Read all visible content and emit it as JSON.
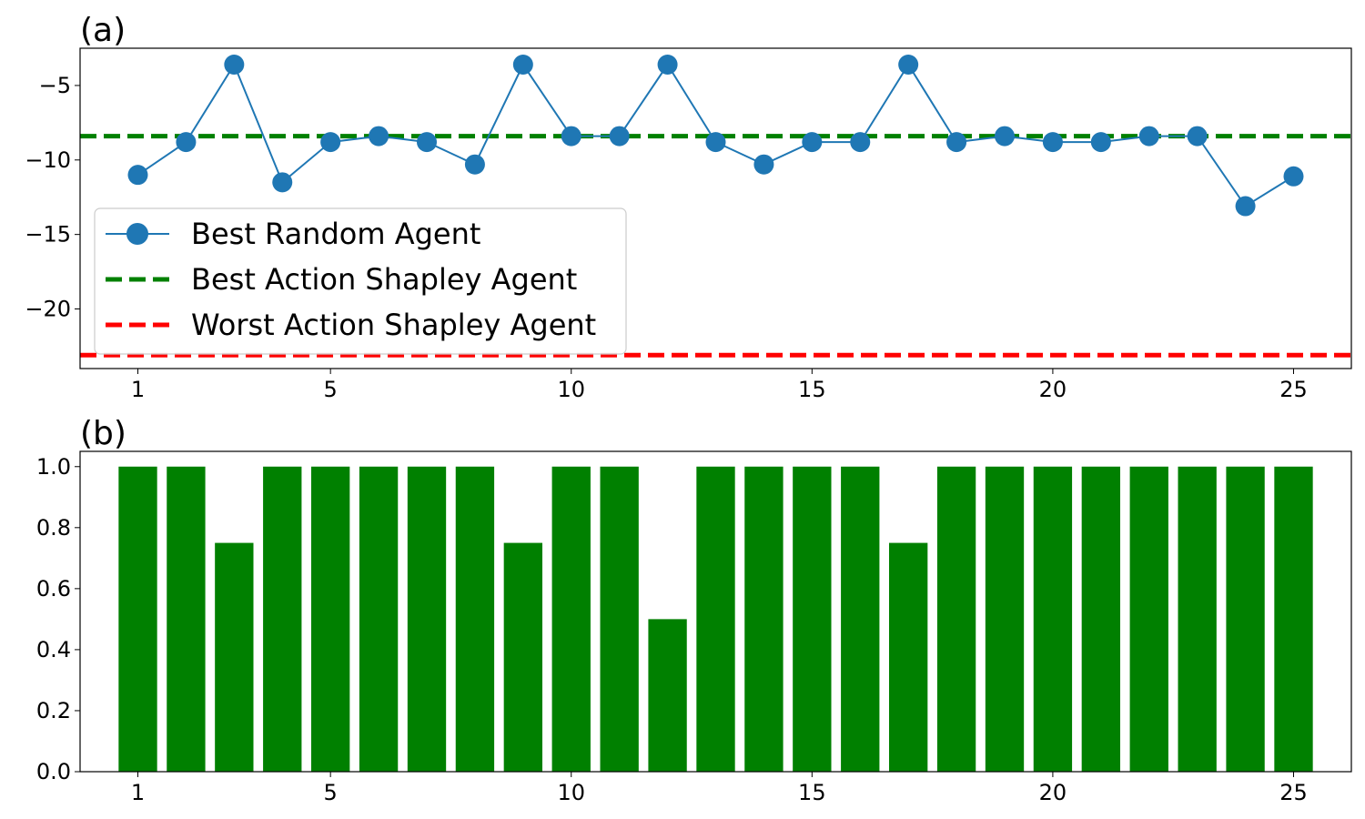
{
  "chart_data": [
    {
      "type": "line",
      "panel_label": "(a)",
      "x": [
        1,
        2,
        3,
        4,
        5,
        6,
        7,
        8,
        9,
        10,
        11,
        12,
        13,
        14,
        15,
        16,
        17,
        18,
        19,
        20,
        21,
        22,
        23,
        24,
        25
      ],
      "series": [
        {
          "name": "Best Random Agent",
          "style": "line-marker",
          "color": "#1f77b4",
          "values": [
            -11.0,
            -8.8,
            -3.6,
            -11.5,
            -8.8,
            -8.4,
            -8.8,
            -10.3,
            -3.6,
            -8.4,
            -8.4,
            -3.6,
            -8.8,
            -10.3,
            -8.8,
            -8.8,
            -3.6,
            -8.8,
            -8.4,
            -8.8,
            -8.8,
            -8.4,
            -8.4,
            -13.1,
            -11.1
          ]
        },
        {
          "name": "Best Action Shapley Agent",
          "style": "dashed-hline",
          "color": "#008000",
          "value": -8.4
        },
        {
          "name": "Worst Action Shapley Agent",
          "style": "dashed-hline",
          "color": "#ff0000",
          "value": -23.1
        }
      ],
      "xticks": [
        1,
        5,
        10,
        15,
        20,
        25
      ],
      "yticks": [
        -5,
        -10,
        -15,
        -20
      ],
      "ytick_labels": [
        "−5",
        "−10",
        "−15",
        "−20"
      ],
      "xlim": [
        -0.2,
        26.2
      ],
      "ylim": [
        -24.0,
        -2.5
      ],
      "legend_position": "lower-left"
    },
    {
      "type": "bar",
      "panel_label": "(b)",
      "color": "#008000",
      "categories": [
        1,
        2,
        3,
        4,
        5,
        6,
        7,
        8,
        9,
        10,
        11,
        12,
        13,
        14,
        15,
        16,
        17,
        18,
        19,
        20,
        21,
        22,
        23,
        24,
        25
      ],
      "values": [
        1.0,
        1.0,
        0.75,
        1.0,
        1.0,
        1.0,
        1.0,
        1.0,
        0.75,
        1.0,
        1.0,
        0.5,
        1.0,
        1.0,
        1.0,
        1.0,
        0.75,
        1.0,
        1.0,
        1.0,
        1.0,
        1.0,
        1.0,
        1.0,
        1.0
      ],
      "xticks": [
        1,
        5,
        10,
        15,
        20,
        25
      ],
      "yticks": [
        0.0,
        0.2,
        0.4,
        0.6,
        0.8,
        1.0
      ],
      "ytick_labels": [
        "0.0",
        "0.2",
        "0.4",
        "0.6",
        "0.8",
        "1.0"
      ],
      "xlim": [
        -0.2,
        26.2
      ],
      "ylim": [
        0.0,
        1.05
      ]
    }
  ]
}
